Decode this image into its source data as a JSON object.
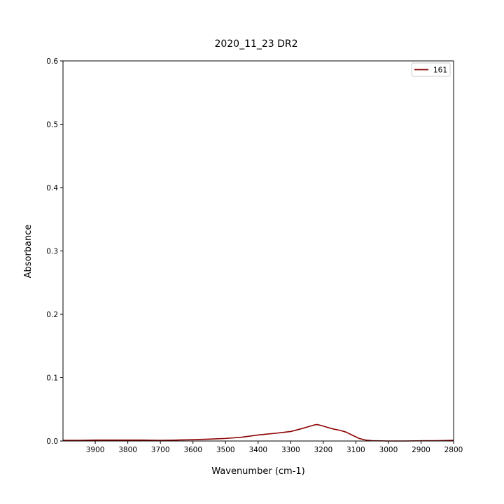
{
  "chart_data": {
    "type": "line",
    "title": "2020_11_23 DR2",
    "xlabel": "Wavenumber (cm-1)",
    "ylabel": "Absorbance",
    "xlim": [
      3999,
      2800
    ],
    "ylim": [
      0,
      0.6
    ],
    "x_ticks": [
      3900,
      3800,
      3700,
      3600,
      3500,
      3400,
      3300,
      3200,
      3100,
      3000,
      2900,
      2800
    ],
    "y_ticks": [
      0.0,
      0.1,
      0.2,
      0.3,
      0.4,
      0.5,
      0.6
    ],
    "x_tick_labels": [
      "3900",
      "3800",
      "3700",
      "3600",
      "3500",
      "3400",
      "3300",
      "3200",
      "3100",
      "3000",
      "2900",
      "2800"
    ],
    "y_tick_labels": [
      "0.0",
      "0.1",
      "0.2",
      "0.3",
      "0.4",
      "0.5",
      "0.6"
    ],
    "grid": false,
    "legend_position": "top-right",
    "series": [
      {
        "name": "161",
        "color": "#8b0000",
        "x": [
          3999,
          3950,
          3900,
          3850,
          3800,
          3750,
          3700,
          3650,
          3600,
          3550,
          3500,
          3450,
          3400,
          3350,
          3300,
          3270,
          3250,
          3230,
          3220,
          3210,
          3190,
          3170,
          3150,
          3130,
          3110,
          3090,
          3070,
          3050,
          3000,
          2950,
          2900,
          2850,
          2800
        ],
        "y": [
          0.001,
          0.001,
          0.0015,
          0.0015,
          0.0015,
          0.0015,
          0.001,
          0.0015,
          0.002,
          0.003,
          0.004,
          0.006,
          0.0095,
          0.012,
          0.015,
          0.019,
          0.022,
          0.025,
          0.026,
          0.025,
          0.022,
          0.019,
          0.017,
          0.014,
          0.009,
          0.004,
          0.0015,
          0.0005,
          0.0,
          0.0,
          0.0003,
          0.0005,
          0.001
        ]
      }
    ]
  }
}
